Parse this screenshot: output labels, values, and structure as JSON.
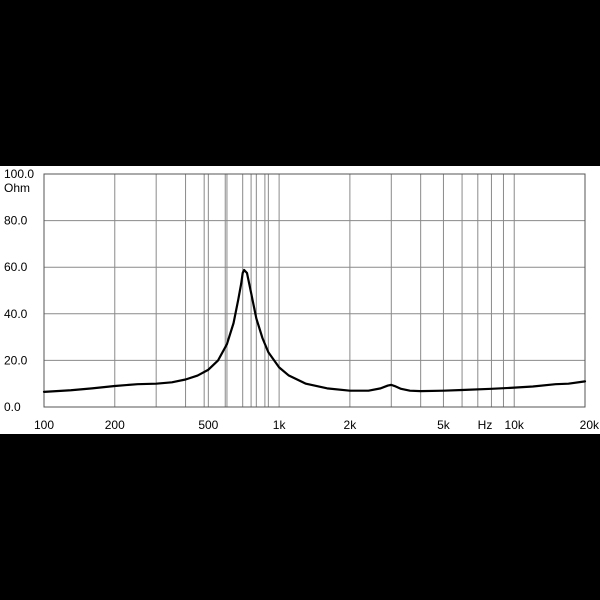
{
  "chart_data": {
    "type": "line",
    "title": "",
    "xlabel": "Hz",
    "ylabel": "Ohm",
    "x_scale": "log",
    "xlim": [
      100,
      20000
    ],
    "ylim": [
      0,
      100
    ],
    "x_tick_labels": [
      {
        "value": 100,
        "label": "100"
      },
      {
        "value": 200,
        "label": "200"
      },
      {
        "value": 500,
        "label": "500"
      },
      {
        "value": 1000,
        "label": "1k"
      },
      {
        "value": 2000,
        "label": "2k"
      },
      {
        "value": 5000,
        "label": "5k"
      },
      {
        "value": 10000,
        "label": "10k"
      },
      {
        "value": 20000,
        "label": "20k"
      }
    ],
    "y_tick_labels": [
      {
        "value": 0,
        "label": "0.0"
      },
      {
        "value": 20,
        "label": "20.0"
      },
      {
        "value": 40,
        "label": "40.0"
      },
      {
        "value": 60,
        "label": "60.0"
      },
      {
        "value": 80,
        "label": "80.0"
      },
      {
        "value": 100,
        "label": "100.0"
      }
    ],
    "x_gridlines": [
      200,
      300,
      400,
      500,
      600,
      700,
      800,
      900,
      1000,
      2000,
      3000,
      4000,
      5000,
      6000,
      7000,
      8000,
      9000,
      10000,
      20000
    ],
    "x_gridline_extras": [
      480,
      590,
      760,
      870
    ],
    "grid": true,
    "legend": "none",
    "series": [
      {
        "color": "#000000",
        "x": [
          100,
          130,
          160,
          200,
          250,
          300,
          350,
          400,
          450,
          500,
          550,
          600,
          640,
          670,
          690,
          700,
          710,
          730,
          760,
          800,
          850,
          900,
          1000,
          1100,
          1300,
          1600,
          2000,
          2400,
          2700,
          2900,
          3000,
          3100,
          3300,
          3600,
          4000,
          5000,
          6000,
          8000,
          10000,
          12000,
          15000,
          17000,
          20000
        ],
        "y": [
          6.5,
          7.2,
          8.0,
          9.0,
          9.8,
          10.0,
          10.6,
          11.8,
          13.5,
          16.0,
          20.0,
          27.0,
          36.0,
          46.0,
          53.0,
          57.5,
          58.8,
          57.5,
          49.0,
          38.0,
          29.5,
          23.5,
          17.0,
          13.5,
          10.0,
          8.0,
          7.0,
          7.0,
          8.0,
          9.2,
          9.5,
          9.0,
          7.8,
          7.0,
          6.8,
          7.0,
          7.3,
          7.8,
          8.3,
          8.8,
          9.8,
          10.0,
          11.0
        ]
      }
    ]
  }
}
